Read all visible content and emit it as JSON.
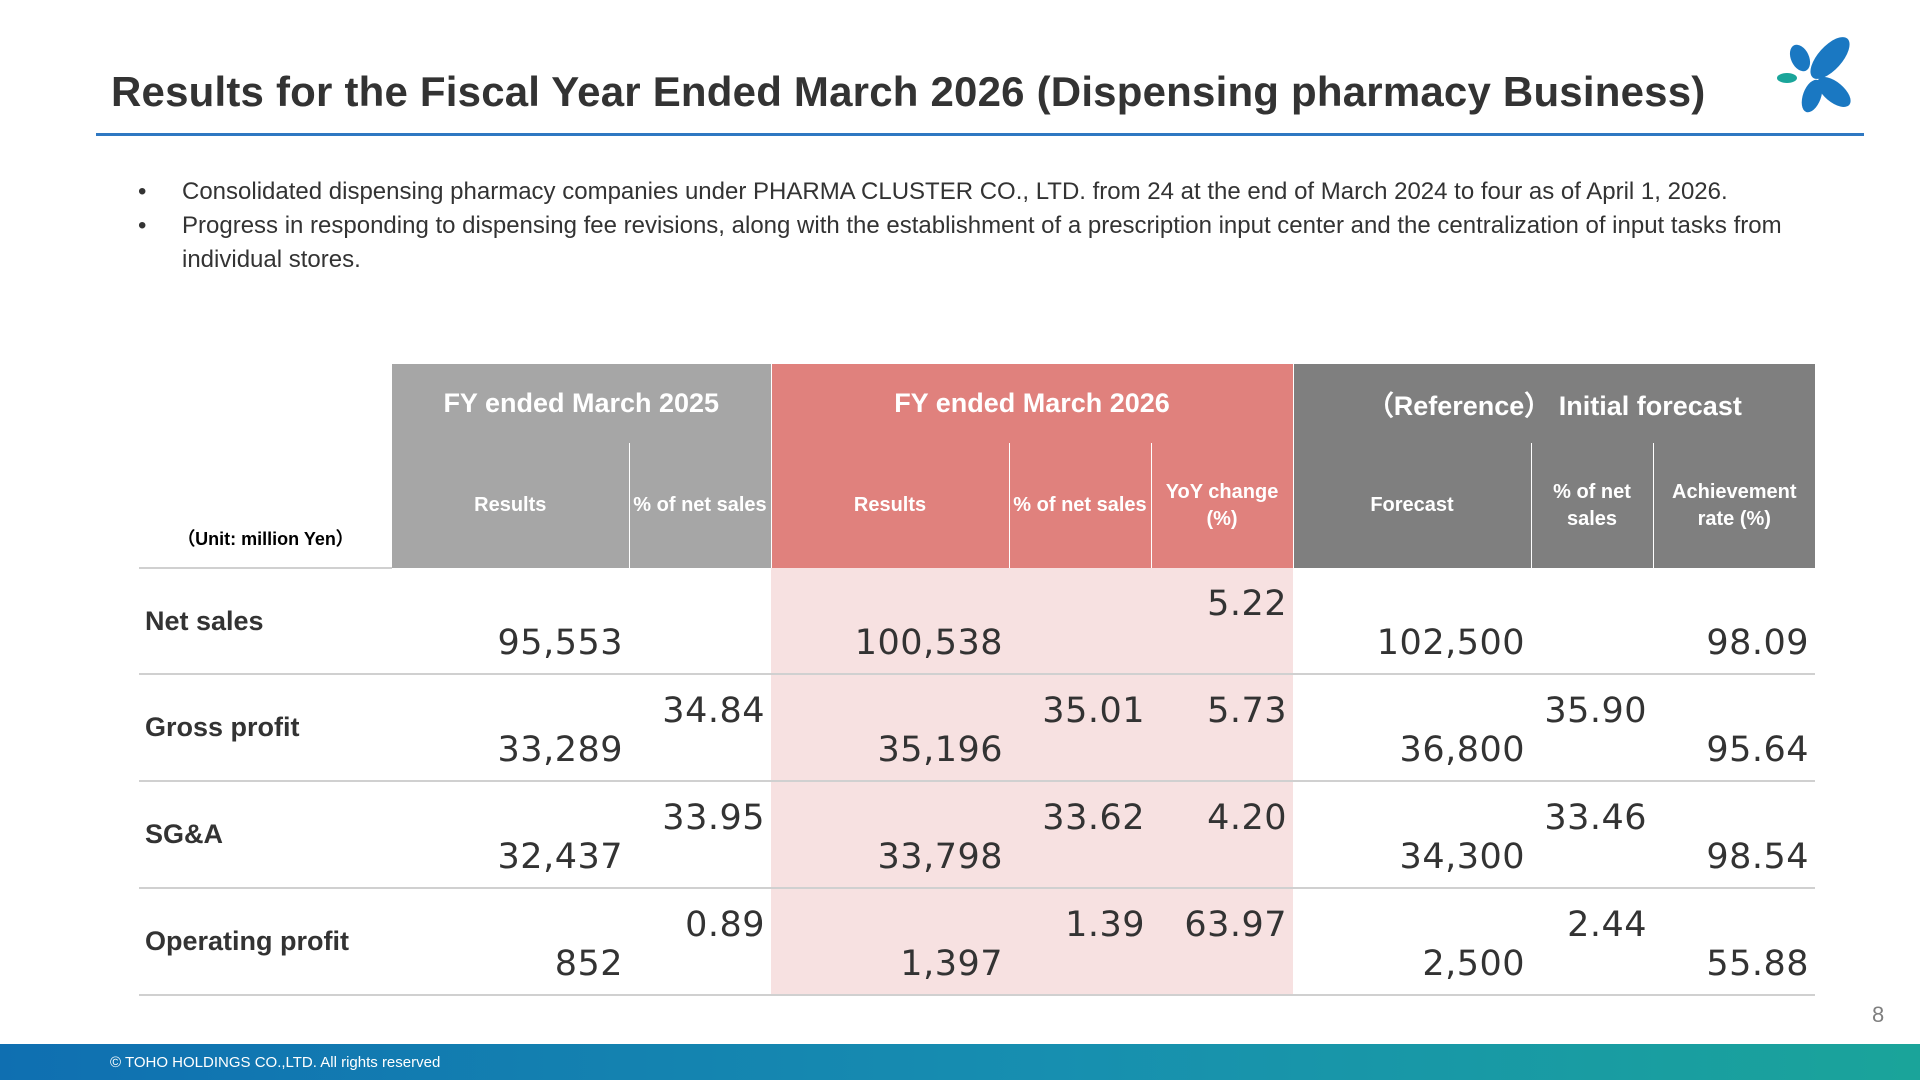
{
  "title": "Results for the Fiscal Year Ended March 2026 (Dispensing pharmacy Business)",
  "bullets": [
    "Consolidated dispensing pharmacy companies under PHARMA CLUSTER CO., LTD. from 24 at the end of March 2024 to four as of April 1, 2026.",
    "Progress in responding to dispensing fee revisions, along with the establishment of a prescription input center and the centralization of input tasks from individual stores."
  ],
  "bullet_glyph": "•",
  "table": {
    "unit": "（Unit: million Yen）",
    "groups": {
      "fy2025": "FY ended March 2025",
      "fy2026": "FY ended March 2026",
      "reference": "（Reference）  Initial forecast"
    },
    "columns": {
      "fy2025_results": "Results",
      "fy2025_pct": "% of net sales",
      "fy2026_results": "Results",
      "fy2026_pct": "% of net sales",
      "fy2026_yoy": "YoY change (%)",
      "ref_forecast": "Forecast",
      "ref_pct": "% of net sales",
      "ref_achievement": "Achievement rate (%)"
    },
    "rows": [
      {
        "label": "Net sales",
        "fy2025_results": "95,553",
        "fy2025_pct": "",
        "fy2026_results": "100,538",
        "fy2026_pct": "",
        "fy2026_yoy": "5.22",
        "ref_forecast": "102,500",
        "ref_pct": "",
        "ref_achievement": "98.09"
      },
      {
        "label": "Gross profit",
        "fy2025_results": "33,289",
        "fy2025_pct": "34.84",
        "fy2026_results": "35,196",
        "fy2026_pct": "35.01",
        "fy2026_yoy": "5.73",
        "ref_forecast": "36,800",
        "ref_pct": "35.90",
        "ref_achievement": "95.64"
      },
      {
        "label": "SG&A",
        "fy2025_results": "32,437",
        "fy2025_pct": "33.95",
        "fy2026_results": "33,798",
        "fy2026_pct": "33.62",
        "fy2026_yoy": "4.20",
        "ref_forecast": "34,300",
        "ref_pct": "33.46",
        "ref_achievement": "98.54"
      },
      {
        "label": "Operating profit",
        "fy2025_results": "852",
        "fy2025_pct": "0.89",
        "fy2026_results": "1,397",
        "fy2026_pct": "1.39",
        "fy2026_yoy": "63.97",
        "ref_forecast": "2,500",
        "ref_pct": "2.44",
        "ref_achievement": "55.88"
      }
    ]
  },
  "page_number": "8",
  "footer": "© TOHO HOLDINGS CO.,LTD. All rights reserved",
  "colors": {
    "title_rule": "#2e78c2",
    "fy2025_header": "#a6a6a6",
    "fy2026_header": "#e0817d",
    "fy2026_body": "#f7e1e1",
    "reference_header": "#7f7f7f",
    "logo_blue": "#1a78c2",
    "logo_teal": "#1aa59a"
  },
  "icons": {
    "logo": "four-petal-flower-logo-icon"
  }
}
